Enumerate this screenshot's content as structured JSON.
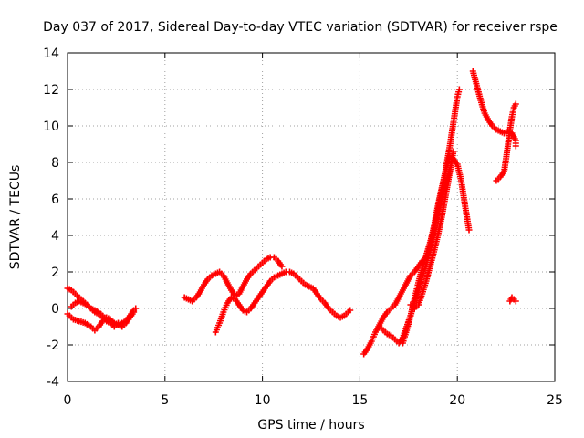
{
  "chart_data": {
    "type": "scatter",
    "title": "Day 037 of 2017, Sidereal Day-to-day VTEC variation (SDTVAR) for receiver rspe",
    "xlabel": "GPS time / hours",
    "ylabel": "SDTVAR / TECUs",
    "xlim": [
      0,
      25
    ],
    "ylim": [
      -4,
      14
    ],
    "xticks": [
      0,
      5,
      10,
      15,
      20,
      25
    ],
    "yticks": [
      -4,
      -2,
      0,
      2,
      4,
      6,
      8,
      10,
      12,
      14
    ],
    "grid": true,
    "legend": "none",
    "marker": "plus",
    "color": "#ff0000",
    "series": [
      {
        "points": [
          [
            0.0,
            -0.3
          ],
          [
            0.3,
            -0.6
          ],
          [
            0.6,
            -0.7
          ],
          [
            0.9,
            -0.8
          ],
          [
            1.2,
            -1.0
          ],
          [
            1.4,
            -1.2
          ],
          [
            1.6,
            -1.0
          ],
          [
            1.8,
            -0.7
          ],
          [
            2.0,
            -0.5
          ],
          [
            2.2,
            -0.6
          ],
          [
            2.4,
            -0.9
          ],
          [
            2.6,
            -0.9
          ],
          [
            2.8,
            -0.8
          ],
          [
            3.0,
            -0.7
          ],
          [
            3.2,
            -0.4
          ],
          [
            3.4,
            -0.1
          ],
          [
            3.5,
            0.0
          ]
        ]
      },
      {
        "points": [
          [
            0.0,
            1.1
          ],
          [
            0.2,
            1.0
          ],
          [
            0.4,
            0.8
          ],
          [
            0.6,
            0.6
          ],
          [
            0.8,
            0.4
          ],
          [
            1.0,
            0.2
          ],
          [
            1.2,
            0.0
          ],
          [
            1.4,
            -0.1
          ],
          [
            1.6,
            -0.2
          ],
          [
            1.8,
            -0.4
          ],
          [
            2.0,
            -0.6
          ],
          [
            2.2,
            -0.7
          ],
          [
            2.4,
            -0.8
          ],
          [
            2.6,
            -0.9
          ],
          [
            2.8,
            -1.0
          ],
          [
            3.0,
            -0.8
          ],
          [
            3.2,
            -0.5
          ],
          [
            3.4,
            -0.2
          ]
        ]
      },
      {
        "points": [
          [
            0.2,
            0.1
          ],
          [
            0.4,
            0.3
          ],
          [
            0.6,
            0.4
          ],
          [
            0.8,
            0.3
          ],
          [
            1.0,
            0.2
          ],
          [
            1.2,
            0.0
          ],
          [
            1.4,
            -0.2
          ],
          [
            1.6,
            -0.3
          ],
          [
            1.8,
            -0.5
          ],
          [
            2.0,
            -0.7
          ],
          [
            2.2,
            -0.8
          ],
          [
            2.4,
            -1.0
          ],
          [
            2.6,
            -0.8
          ]
        ]
      },
      {
        "points": [
          [
            6.0,
            0.6
          ],
          [
            6.2,
            0.5
          ],
          [
            6.4,
            0.4
          ],
          [
            6.6,
            0.6
          ],
          [
            6.8,
            0.9
          ],
          [
            7.0,
            1.3
          ],
          [
            7.2,
            1.6
          ],
          [
            7.4,
            1.8
          ],
          [
            7.6,
            1.9
          ],
          [
            7.8,
            2.0
          ],
          [
            8.0,
            1.8
          ],
          [
            8.2,
            1.4
          ],
          [
            8.4,
            1.0
          ],
          [
            8.6,
            0.7
          ],
          [
            8.8,
            0.8
          ],
          [
            9.0,
            1.2
          ],
          [
            9.2,
            1.6
          ],
          [
            9.4,
            1.9
          ],
          [
            9.6,
            2.1
          ],
          [
            9.8,
            2.3
          ],
          [
            10.0,
            2.5
          ],
          [
            10.2,
            2.7
          ],
          [
            10.4,
            2.8
          ],
          [
            10.6,
            2.8
          ],
          [
            10.8,
            2.6
          ],
          [
            11.0,
            2.3
          ]
        ]
      },
      {
        "points": [
          [
            7.6,
            -1.3
          ],
          [
            7.8,
            -0.8
          ],
          [
            8.0,
            -0.2
          ],
          [
            8.2,
            0.3
          ],
          [
            8.4,
            0.6
          ],
          [
            8.6,
            0.5
          ],
          [
            8.8,
            0.2
          ],
          [
            9.0,
            -0.1
          ],
          [
            9.2,
            -0.2
          ],
          [
            9.4,
            0.0
          ],
          [
            9.6,
            0.3
          ],
          [
            9.8,
            0.6
          ],
          [
            10.0,
            0.9
          ],
          [
            10.2,
            1.2
          ],
          [
            10.4,
            1.5
          ],
          [
            10.6,
            1.7
          ],
          [
            10.8,
            1.8
          ],
          [
            11.0,
            1.9
          ],
          [
            11.2,
            2.0
          ],
          [
            11.4,
            2.0
          ],
          [
            11.6,
            1.9
          ],
          [
            11.8,
            1.7
          ],
          [
            12.0,
            1.5
          ],
          [
            12.2,
            1.3
          ],
          [
            12.4,
            1.2
          ],
          [
            12.6,
            1.1
          ],
          [
            12.8,
            0.8
          ],
          [
            13.0,
            0.5
          ],
          [
            13.2,
            0.3
          ],
          [
            13.4,
            0.0
          ],
          [
            13.6,
            -0.2
          ],
          [
            13.8,
            -0.4
          ],
          [
            14.0,
            -0.5
          ],
          [
            14.2,
            -0.4
          ],
          [
            14.4,
            -0.2
          ],
          [
            14.5,
            -0.1
          ]
        ]
      },
      {
        "points": [
          [
            15.2,
            -2.5
          ],
          [
            15.4,
            -2.2
          ],
          [
            15.6,
            -1.8
          ],
          [
            15.8,
            -1.3
          ],
          [
            16.0,
            -0.9
          ],
          [
            16.2,
            -0.5
          ],
          [
            16.4,
            -0.2
          ],
          [
            16.6,
            0.0
          ],
          [
            16.8,
            0.2
          ],
          [
            17.0,
            0.6
          ],
          [
            17.2,
            1.0
          ],
          [
            17.4,
            1.4
          ],
          [
            17.6,
            1.8
          ],
          [
            17.8,
            2.0
          ],
          [
            18.0,
            2.3
          ],
          [
            18.2,
            2.6
          ],
          [
            18.4,
            2.8
          ],
          [
            18.6,
            3.5
          ],
          [
            18.8,
            4.5
          ],
          [
            19.0,
            5.6
          ],
          [
            19.2,
            6.6
          ],
          [
            19.4,
            7.5
          ],
          [
            19.6,
            8.3
          ],
          [
            19.8,
            8.2
          ],
          [
            20.0,
            7.9
          ],
          [
            20.2,
            7.0
          ],
          [
            20.4,
            5.6
          ],
          [
            20.6,
            4.3
          ]
        ]
      },
      {
        "points": [
          [
            16.0,
            -1.0
          ],
          [
            16.2,
            -1.2
          ],
          [
            16.4,
            -1.4
          ],
          [
            16.6,
            -1.5
          ],
          [
            16.8,
            -1.7
          ],
          [
            17.0,
            -1.9
          ],
          [
            17.2,
            -1.6
          ],
          [
            17.4,
            -1.0
          ],
          [
            17.6,
            -0.4
          ],
          [
            17.8,
            0.3
          ],
          [
            18.0,
            1.0
          ],
          [
            18.2,
            1.7
          ],
          [
            18.4,
            2.4
          ],
          [
            18.6,
            3.3
          ],
          [
            18.8,
            4.2
          ],
          [
            19.0,
            5.3
          ],
          [
            19.2,
            6.4
          ],
          [
            19.4,
            7.6
          ],
          [
            19.6,
            8.8
          ],
          [
            19.8,
            10.2
          ],
          [
            20.0,
            11.6
          ],
          [
            20.1,
            12.0
          ]
        ]
      },
      {
        "points": [
          [
            17.2,
            -1.9
          ],
          [
            17.4,
            -1.2
          ],
          [
            17.6,
            -0.4
          ],
          [
            17.8,
            0.5
          ],
          [
            18.0,
            1.4
          ],
          [
            18.2,
            2.2
          ],
          [
            18.4,
            2.9
          ],
          [
            18.6,
            3.6
          ],
          [
            18.8,
            4.4
          ],
          [
            19.0,
            5.2
          ],
          [
            19.2,
            6.0
          ],
          [
            19.4,
            6.8
          ],
          [
            19.6,
            7.6
          ]
        ]
      },
      {
        "points": [
          [
            17.6,
            0.2
          ],
          [
            17.8,
            0.0
          ],
          [
            18.0,
            0.2
          ],
          [
            18.2,
            0.8
          ],
          [
            18.4,
            1.5
          ],
          [
            18.6,
            2.3
          ],
          [
            18.8,
            3.1
          ],
          [
            19.0,
            4.0
          ],
          [
            19.2,
            5.0
          ],
          [
            19.4,
            6.2
          ],
          [
            19.6,
            7.4
          ],
          [
            19.8,
            8.6
          ]
        ]
      },
      {
        "points": [
          [
            20.8,
            13.0
          ],
          [
            21.0,
            12.2
          ],
          [
            21.2,
            11.4
          ],
          [
            21.4,
            10.7
          ],
          [
            21.6,
            10.3
          ],
          [
            21.8,
            10.0
          ],
          [
            22.0,
            9.8
          ],
          [
            22.2,
            9.7
          ],
          [
            22.4,
            9.6
          ],
          [
            22.6,
            9.7
          ],
          [
            22.8,
            9.6
          ],
          [
            23.0,
            9.2
          ],
          [
            23.0,
            8.9
          ]
        ]
      },
      {
        "points": [
          [
            22.0,
            7.0
          ],
          [
            22.2,
            7.2
          ],
          [
            22.4,
            7.5
          ],
          [
            22.5,
            8.2
          ],
          [
            22.6,
            9.0
          ],
          [
            22.7,
            9.8
          ],
          [
            22.8,
            10.5
          ],
          [
            22.9,
            11.0
          ],
          [
            23.0,
            11.2
          ]
        ]
      },
      {
        "points": [
          [
            22.7,
            0.4
          ],
          [
            22.8,
            0.6
          ],
          [
            22.9,
            0.5
          ],
          [
            23.0,
            0.4
          ]
        ]
      }
    ]
  }
}
